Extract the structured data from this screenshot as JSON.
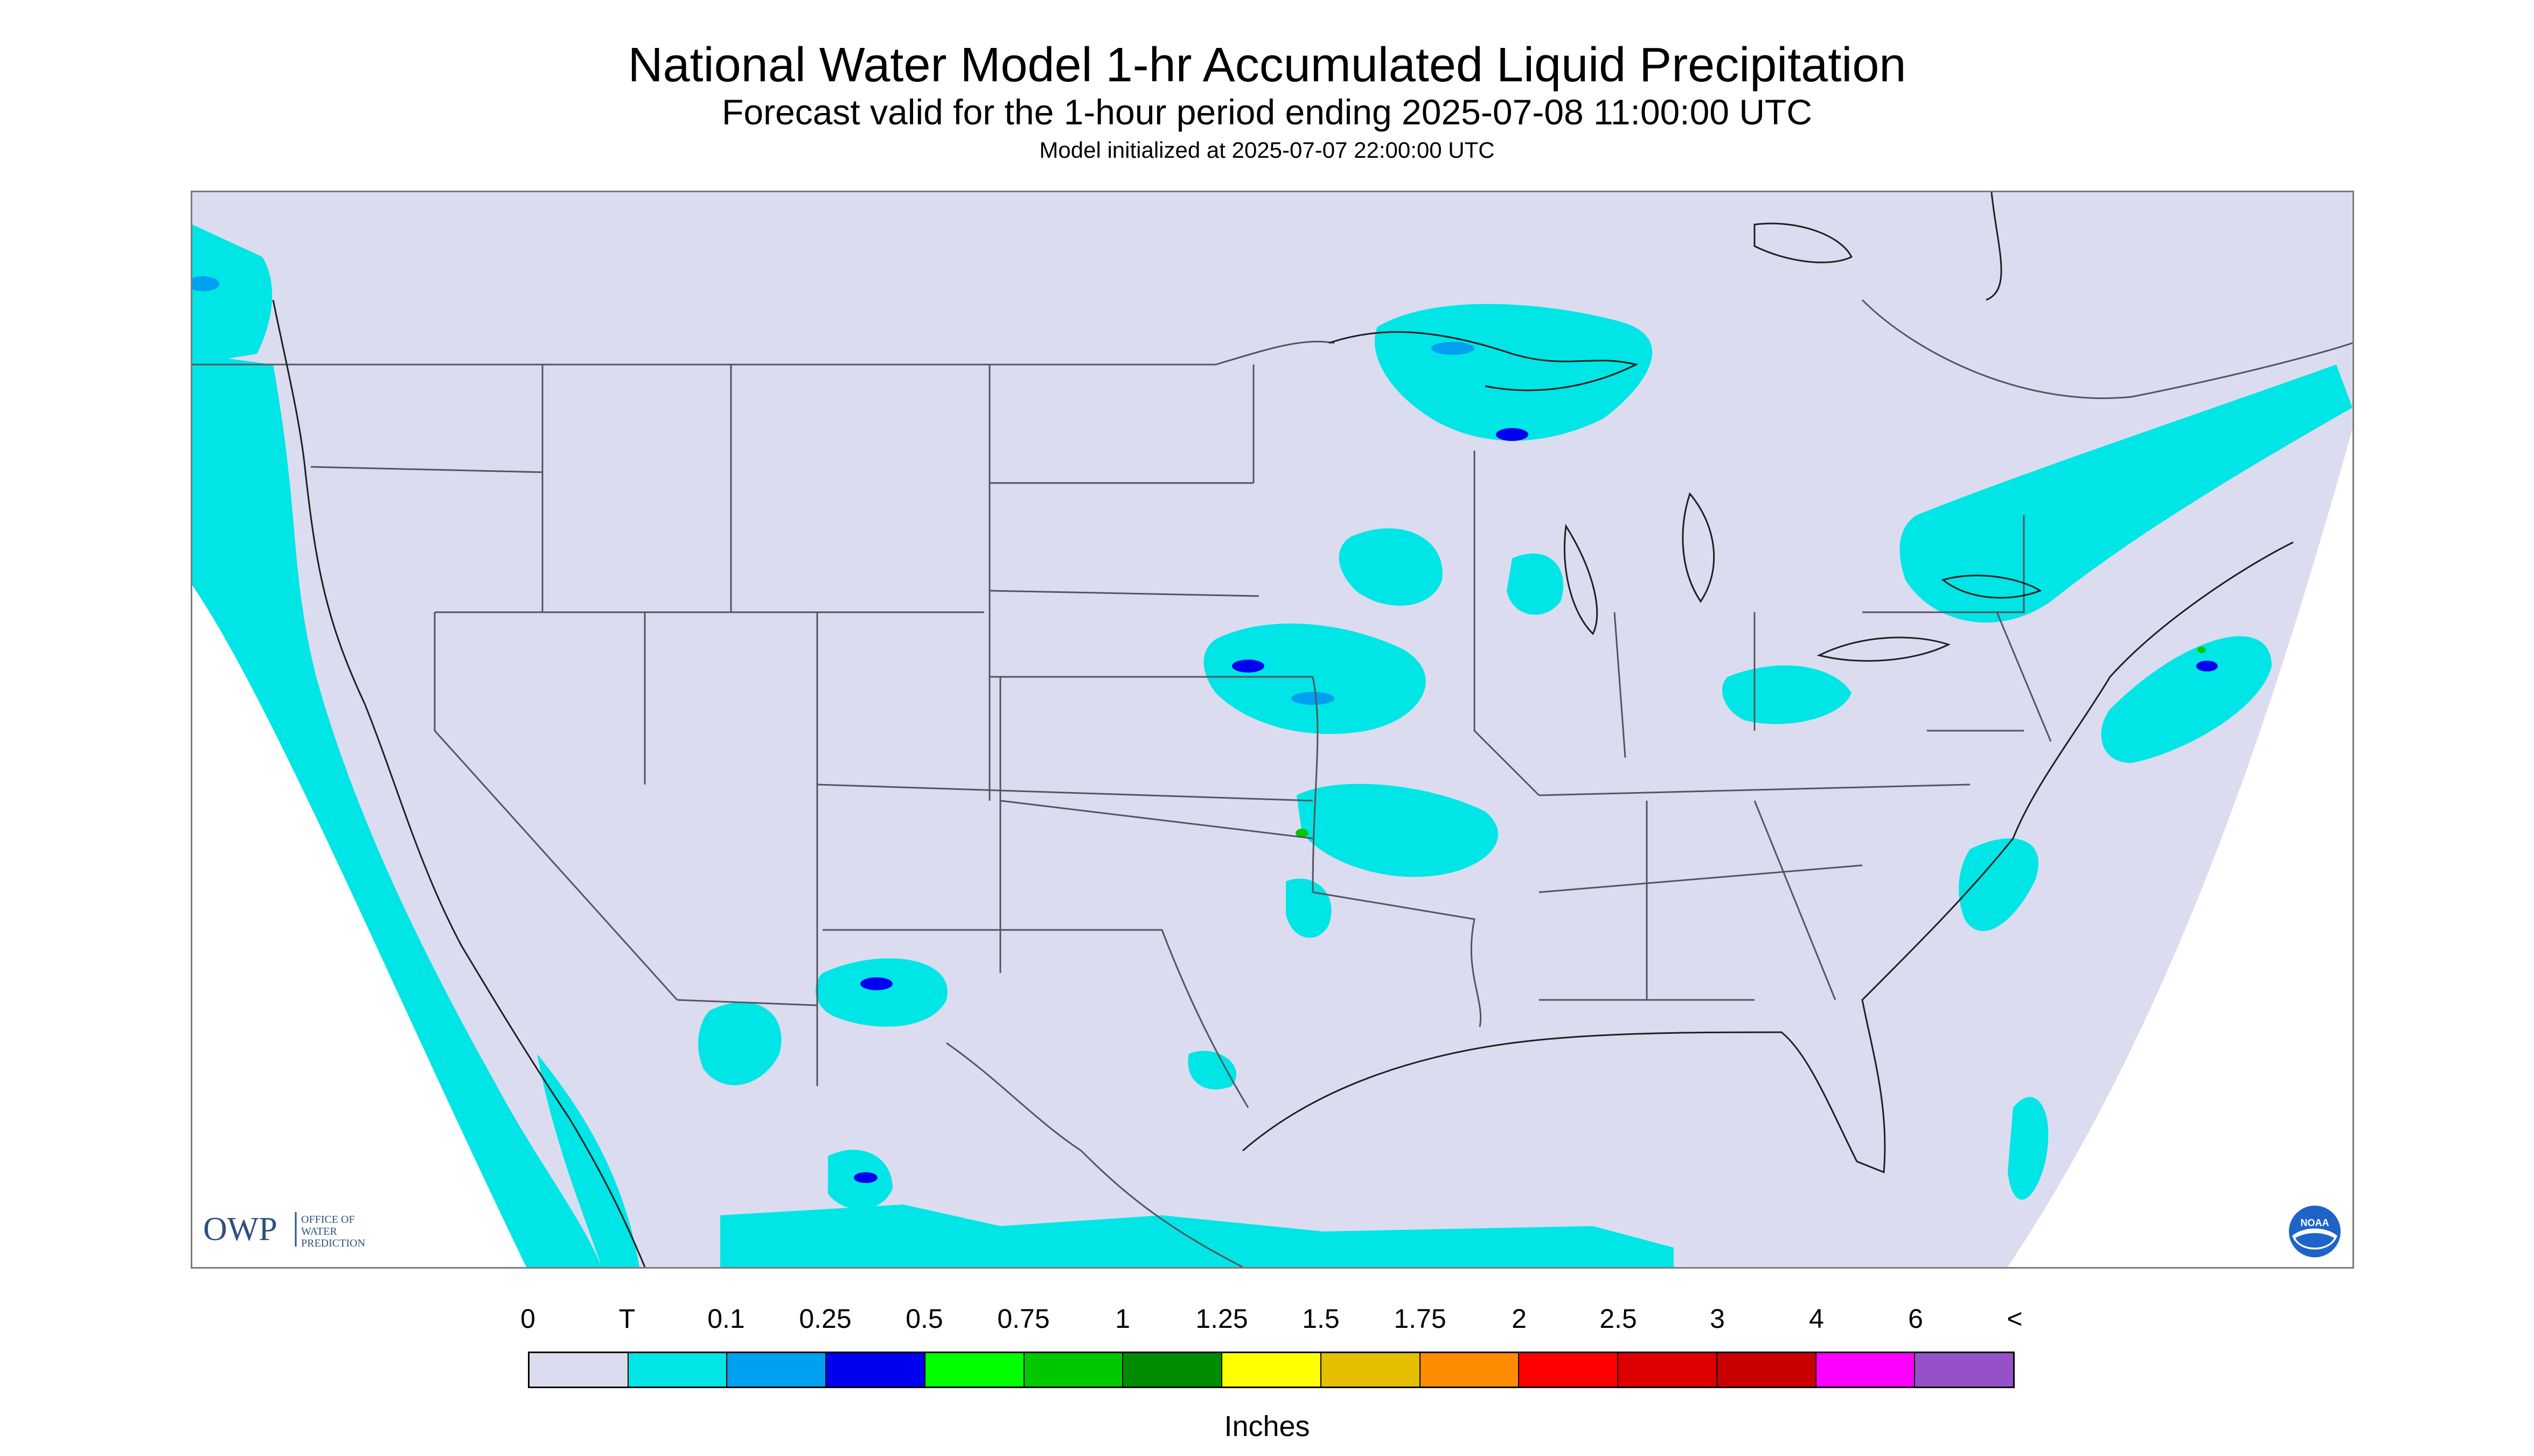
{
  "header": {
    "title": "National Water Model 1-hr Accumulated Liquid Precipitation",
    "subtitle": "Forecast valid for the 1-hour period ending 2025-07-08 11:00:00 UTC",
    "init_line": "Model initialized at 2025-07-07 22:00:00 UTC"
  },
  "map": {
    "background_color": "#dcdcf0",
    "line_color": "#555560",
    "coast_color": "#202020"
  },
  "branding": {
    "owp_mark": "OWP",
    "owp_text": [
      "OFFICE OF",
      "WATER",
      "PREDICTION"
    ],
    "noaa_mark": "NOAA",
    "noaa_icon": "noaa-seal-icon"
  },
  "legend": {
    "labels": [
      "0",
      "T",
      "0.1",
      "0.25",
      "0.5",
      "0.75",
      "1",
      "1.25",
      "1.5",
      "1.75",
      "2",
      "2.5",
      "3",
      "4",
      "6",
      "<"
    ],
    "colors": [
      "#dcdcf0",
      "#00e5e5",
      "#00a0f0",
      "#0000f0",
      "#00ff00",
      "#00c800",
      "#008c00",
      "#ffff00",
      "#e6be00",
      "#ff8c00",
      "#ff0000",
      "#dc0000",
      "#c80000",
      "#ff00ff",
      "#9650c8"
    ],
    "units": "Inches"
  }
}
